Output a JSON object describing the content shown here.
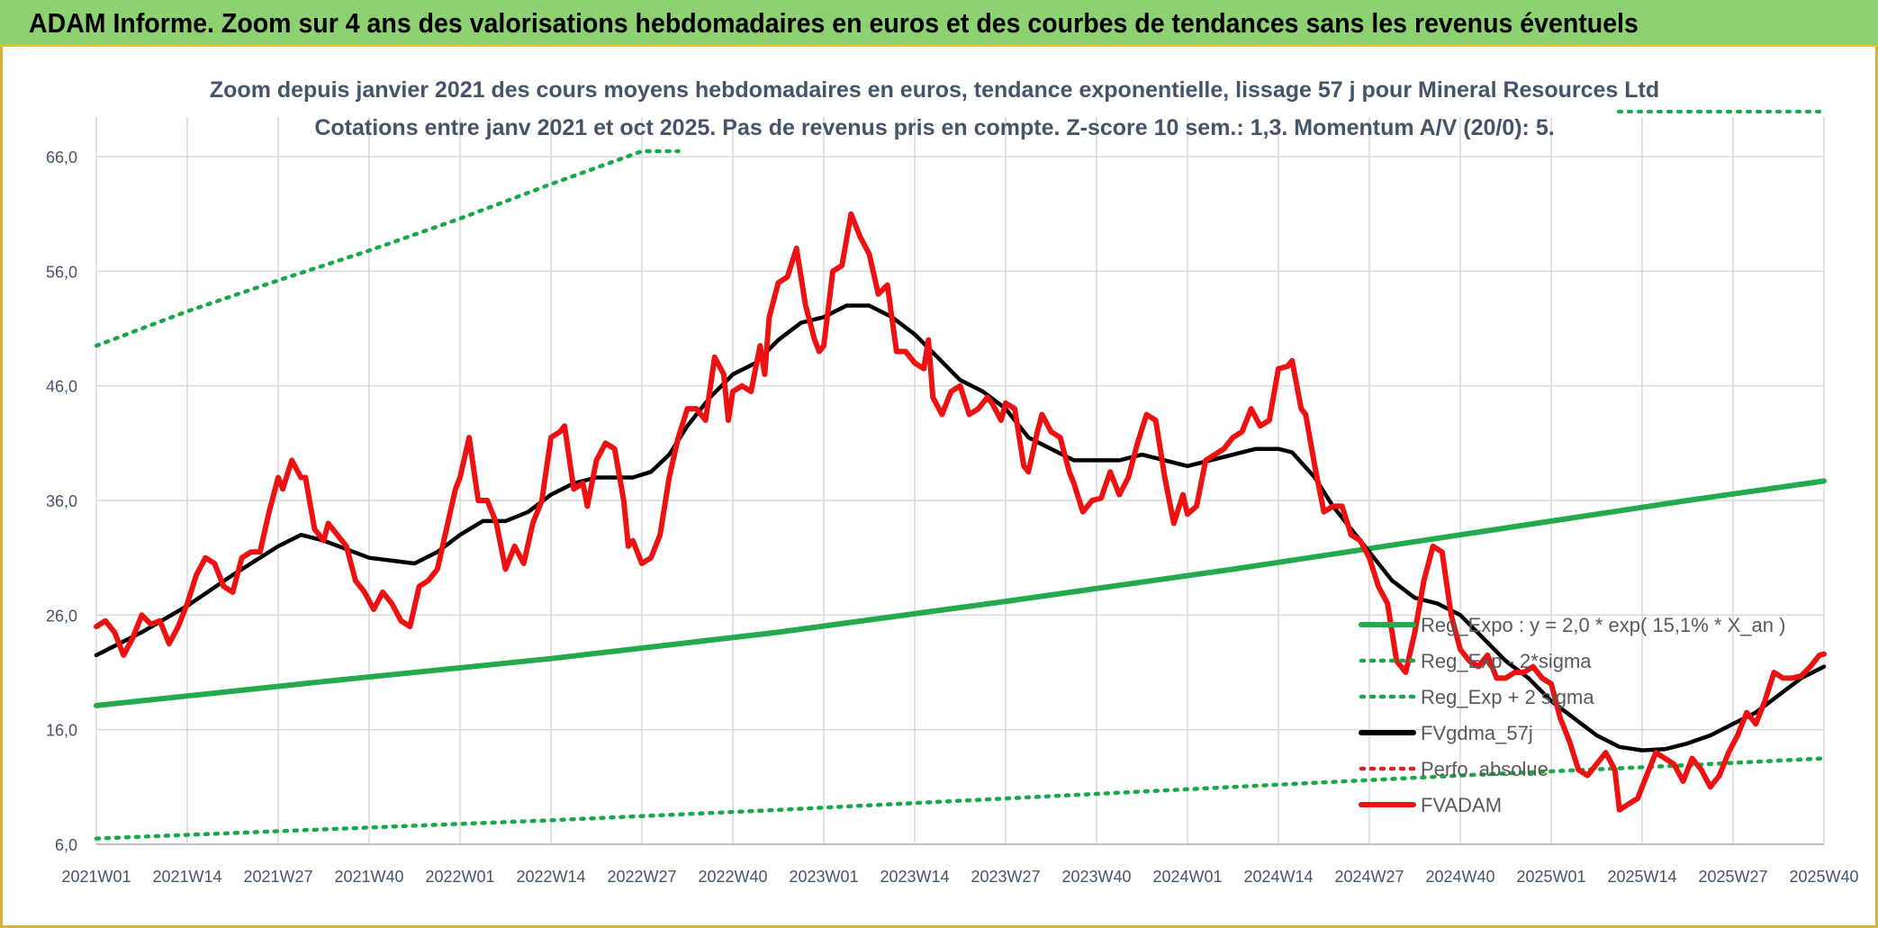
{
  "header": {
    "title": "ADAM Informe. Zoom sur 4 ans des valorisations hebdomadaires en euros et des courbes de tendances sans les revenus éventuels"
  },
  "colors": {
    "red": "#ee1111",
    "black": "#000000",
    "green": "#22aa4c",
    "green_dot": "#17a84a",
    "red_dot": "#e02020",
    "grid": "#d9d9d9"
  },
  "chart_data": {
    "type": "line",
    "title": "Zoom depuis janvier 2021 des cours moyens hebdomadaires en euros, tendance exponentielle, lissage 57 j pour Mineral Resources Ltd",
    "subtitle": "Cotations entre janv 2021 et oct 2025. Pas de revenus pris en compte. Z-score 10 sem.: 1,3. Momentum A/V (20/0): 5.",
    "y_ticks": [
      "6,0",
      "16,0",
      "26,0",
      "36,0",
      "46,0",
      "56,0",
      "66,0"
    ],
    "ylim": [
      6,
      68
    ],
    "x_tick_labels": [
      "2021W01",
      "2021W14",
      "2021W27",
      "2021W40",
      "2022W01",
      "2022W14",
      "2022W27",
      "2022W40",
      "2023W01",
      "2023W14",
      "2023W27",
      "2023W40",
      "2024W01",
      "2024W14",
      "2024W27",
      "2024W40",
      "2025W01",
      "2025W14",
      "2025W27",
      "2025W40"
    ],
    "x_range_weeks": [
      0,
      248
    ],
    "legend": [
      {
        "label": "Reg_Expo : y = 2,0 * exp( 15,1% *  X_an )",
        "style": "solid",
        "color": "#22aa4c"
      },
      {
        "label": "Reg_Exp - 2*sigma",
        "style": "dotted",
        "color": "#17a84a"
      },
      {
        "label": "Reg_Exp + 2 sigma",
        "style": "dotted",
        "color": "#17a84a"
      },
      {
        "label": "FVgdma_57j",
        "style": "solid",
        "color": "#000000"
      },
      {
        "label": "Perfo. absolue",
        "style": "dotted",
        "color": "#e02020"
      },
      {
        "label": "FVADAM",
        "style": "solid",
        "color": "#ee1111"
      }
    ],
    "series": [
      {
        "name": "FVADAM",
        "points": [
          [
            0,
            25
          ],
          [
            2,
            25.5
          ],
          [
            4,
            24.5
          ],
          [
            6,
            22.5
          ],
          [
            8,
            24
          ],
          [
            10,
            26
          ],
          [
            12,
            25.2
          ],
          [
            14,
            25.5
          ],
          [
            16,
            23.5
          ],
          [
            18,
            25
          ],
          [
            20,
            27
          ],
          [
            22,
            29.5
          ],
          [
            24,
            31
          ],
          [
            26,
            30.5
          ],
          [
            28,
            28.5
          ],
          [
            30,
            28
          ],
          [
            32,
            31
          ],
          [
            34,
            31.5
          ],
          [
            36,
            31.5
          ],
          [
            38,
            35
          ],
          [
            40,
            38
          ],
          [
            41,
            37
          ],
          [
            43,
            39.5
          ],
          [
            45,
            38
          ],
          [
            46,
            38
          ],
          [
            48,
            33.5
          ],
          [
            50,
            32.5
          ],
          [
            51,
            34
          ],
          [
            53,
            33
          ],
          [
            55,
            32
          ],
          [
            57,
            29
          ],
          [
            59,
            28
          ],
          [
            61,
            26.5
          ],
          [
            63,
            28
          ],
          [
            65,
            27
          ],
          [
            67,
            25.5
          ],
          [
            69,
            25
          ],
          [
            71,
            28.5
          ],
          [
            73,
            29
          ],
          [
            75,
            30
          ],
          [
            77,
            33.5
          ],
          [
            79,
            37
          ],
          [
            80,
            38
          ],
          [
            82,
            41.5
          ],
          [
            84,
            36
          ],
          [
            86,
            36
          ],
          [
            88,
            34
          ],
          [
            90,
            30
          ],
          [
            92,
            32
          ],
          [
            94,
            30.5
          ],
          [
            96,
            34
          ],
          [
            98,
            36
          ],
          [
            100,
            41.5
          ],
          [
            102,
            42
          ],
          [
            103,
            42.5
          ],
          [
            105,
            37
          ],
          [
            107,
            37.5
          ],
          [
            108,
            35.5
          ],
          [
            110,
            39.5
          ],
          [
            112,
            41
          ],
          [
            114,
            40.5
          ],
          [
            116,
            36
          ],
          [
            117,
            32
          ],
          [
            118,
            32.5
          ],
          [
            120,
            30.5
          ],
          [
            122,
            31
          ],
          [
            124,
            33
          ],
          [
            126,
            38
          ],
          [
            128,
            41.5
          ],
          [
            130,
            44
          ],
          [
            132,
            44
          ],
          [
            134,
            43
          ],
          [
            136,
            48.5
          ],
          [
            138,
            47
          ],
          [
            139,
            43
          ],
          [
            140,
            45.5
          ],
          [
            142,
            46
          ],
          [
            144,
            45.5
          ],
          [
            146,
            49.5
          ],
          [
            147,
            47
          ],
          [
            148,
            52
          ],
          [
            150,
            55
          ],
          [
            152,
            55.5
          ],
          [
            154,
            58
          ],
          [
            156,
            53
          ],
          [
            158,
            50
          ],
          [
            159,
            49
          ],
          [
            160,
            49.5
          ],
          [
            162,
            56
          ],
          [
            164,
            56.5
          ],
          [
            166,
            61
          ],
          [
            168,
            59
          ],
          [
            170,
            57.5
          ],
          [
            172,
            54
          ],
          [
            174,
            54.8
          ],
          [
            176,
            49
          ],
          [
            178,
            49
          ],
          [
            180,
            48
          ],
          [
            182,
            47.5
          ],
          [
            183,
            50
          ],
          [
            184,
            45
          ],
          [
            186,
            43.5
          ],
          [
            188,
            45.5
          ],
          [
            190,
            46
          ],
          [
            192,
            43.5
          ],
          [
            194,
            44
          ],
          [
            196,
            45
          ],
          [
            197,
            44.5
          ],
          [
            199,
            43
          ],
          [
            200,
            44.5
          ],
          [
            202,
            44
          ],
          [
            204,
            39
          ],
          [
            205,
            38.5
          ],
          [
            207,
            42
          ],
          [
            208,
            43.5
          ],
          [
            210,
            42
          ],
          [
            212,
            41.5
          ],
          [
            214,
            38.5
          ],
          [
            215,
            37.5
          ],
          [
            217,
            35
          ],
          [
            219,
            36
          ],
          [
            221,
            36.2
          ],
          [
            223,
            38.5
          ],
          [
            225,
            36.5
          ],
          [
            227,
            38
          ],
          [
            229,
            41
          ],
          [
            231,
            43.5
          ],
          [
            233,
            43
          ],
          [
            235,
            38
          ],
          [
            237,
            34
          ],
          [
            239,
            36.5
          ],
          [
            240,
            34.8
          ],
          [
            242,
            35.5
          ],
          [
            244,
            39.5
          ],
          [
            246,
            40
          ],
          [
            248,
            40.5
          ],
          [
            250,
            41.5
          ],
          [
            252,
            42
          ],
          [
            254,
            44
          ],
          [
            256,
            42.5
          ],
          [
            258,
            43
          ],
          [
            260,
            47.5
          ],
          [
            262,
            47.7
          ],
          [
            263,
            48.2
          ],
          [
            265,
            44
          ],
          [
            266,
            43.5
          ],
          [
            268,
            39
          ],
          [
            270,
            35
          ],
          [
            272,
            35.5
          ],
          [
            274,
            35.5
          ],
          [
            276,
            33
          ],
          [
            278,
            32.5
          ],
          [
            280,
            31
          ],
          [
            282,
            28.5
          ],
          [
            284,
            27
          ],
          [
            286,
            22
          ],
          [
            288,
            21
          ],
          [
            290,
            24.5
          ],
          [
            292,
            29
          ],
          [
            294,
            32
          ],
          [
            296,
            31.5
          ],
          [
            298,
            26
          ],
          [
            300,
            23
          ],
          [
            302,
            22
          ],
          [
            304,
            21.5
          ],
          [
            306,
            22.5
          ],
          [
            308,
            20.5
          ],
          [
            310,
            20.5
          ],
          [
            312,
            21
          ],
          [
            314,
            21
          ],
          [
            316,
            21.5
          ],
          [
            318,
            20.5
          ],
          [
            320,
            20
          ],
          [
            322,
            17
          ],
          [
            324,
            15
          ],
          [
            326,
            12.5
          ],
          [
            328,
            12
          ],
          [
            330,
            13
          ],
          [
            332,
            14
          ],
          [
            334,
            12.5
          ],
          [
            335,
            9
          ],
          [
            337,
            9.5
          ],
          [
            339,
            10
          ],
          [
            341,
            12
          ],
          [
            343,
            14
          ],
          [
            345,
            13.5
          ],
          [
            347,
            13
          ],
          [
            349,
            11.5
          ],
          [
            351,
            13.5
          ],
          [
            353,
            12.5
          ],
          [
            355,
            11
          ],
          [
            357,
            12
          ],
          [
            359,
            14
          ],
          [
            361,
            15.5
          ],
          [
            363,
            17.5
          ],
          [
            365,
            16.5
          ],
          [
            367,
            18.5
          ],
          [
            369,
            21
          ],
          [
            371,
            20.5
          ],
          [
            373,
            20.5
          ],
          [
            375,
            20.7
          ],
          [
            377,
            21.5
          ],
          [
            379,
            22.5
          ],
          [
            380,
            22.6
          ]
        ],
        "color": "#ee1111"
      },
      {
        "name": "FVgdma_57j",
        "points": [
          [
            0,
            22.5
          ],
          [
            10,
            24.5
          ],
          [
            20,
            26.8
          ],
          [
            30,
            29.5
          ],
          [
            40,
            32
          ],
          [
            45,
            33
          ],
          [
            50,
            32.5
          ],
          [
            60,
            31
          ],
          [
            70,
            30.5
          ],
          [
            75,
            31.5
          ],
          [
            80,
            33
          ],
          [
            85,
            34.2
          ],
          [
            90,
            34.2
          ],
          [
            95,
            35
          ],
          [
            100,
            36.5
          ],
          [
            105,
            37.5
          ],
          [
            110,
            38
          ],
          [
            115,
            38
          ],
          [
            118,
            38
          ],
          [
            122,
            38.5
          ],
          [
            126,
            40
          ],
          [
            130,
            42.5
          ],
          [
            135,
            45
          ],
          [
            140,
            47
          ],
          [
            145,
            48
          ],
          [
            150,
            50
          ],
          [
            155,
            51.5
          ],
          [
            160,
            52
          ],
          [
            165,
            53
          ],
          [
            170,
            53
          ],
          [
            175,
            52
          ],
          [
            180,
            50.5
          ],
          [
            185,
            48.5
          ],
          [
            190,
            46.5
          ],
          [
            195,
            45.5
          ],
          [
            200,
            44
          ],
          [
            205,
            41.5
          ],
          [
            210,
            40.5
          ],
          [
            215,
            39.5
          ],
          [
            220,
            39.5
          ],
          [
            225,
            39.5
          ],
          [
            230,
            40
          ],
          [
            235,
            39.5
          ],
          [
            240,
            39
          ],
          [
            245,
            39.5
          ],
          [
            250,
            40
          ],
          [
            255,
            40.5
          ],
          [
            260,
            40.5
          ],
          [
            263,
            40.2
          ],
          [
            268,
            38
          ],
          [
            272,
            35.5
          ],
          [
            276,
            33.5
          ],
          [
            280,
            31.5
          ],
          [
            285,
            29
          ],
          [
            290,
            27.5
          ],
          [
            295,
            27
          ],
          [
            300,
            26
          ],
          [
            305,
            24
          ],
          [
            310,
            22
          ],
          [
            315,
            20.5
          ],
          [
            320,
            18.5
          ],
          [
            325,
            17
          ],
          [
            330,
            15.5
          ],
          [
            335,
            14.5
          ],
          [
            340,
            14.2
          ],
          [
            345,
            14.3
          ],
          [
            350,
            14.8
          ],
          [
            355,
            15.5
          ],
          [
            360,
            16.5
          ],
          [
            365,
            17.5
          ],
          [
            370,
            19
          ],
          [
            375,
            20.5
          ],
          [
            380,
            21.5
          ]
        ],
        "color": "#000000"
      },
      {
        "name": "Reg_Expo",
        "points": [
          [
            0,
            18.1
          ],
          [
            50,
            20.2
          ],
          [
            100,
            22.2
          ],
          [
            150,
            24.5
          ],
          [
            200,
            27.2
          ],
          [
            250,
            30
          ],
          [
            300,
            33
          ],
          [
            350,
            36
          ],
          [
            380,
            37.7
          ]
        ],
        "color": "#22aa4c"
      },
      {
        "name": "Reg_Exp - 2*sigma",
        "points": [
          [
            0,
            6.5
          ],
          [
            50,
            7.3
          ],
          [
            100,
            8.1
          ],
          [
            150,
            9
          ],
          [
            200,
            10
          ],
          [
            250,
            11
          ],
          [
            300,
            12
          ],
          [
            350,
            12.9
          ],
          [
            380,
            13.5
          ]
        ],
        "color": "#17a84a"
      },
      {
        "name": "Reg_Exp + 2 sigma",
        "points": [
          [
            0,
            49.5
          ],
          [
            20,
            52.5
          ],
          [
            40,
            55.2
          ],
          [
            60,
            57.8
          ],
          [
            80,
            60.6
          ],
          [
            100,
            63.6
          ],
          [
            120,
            66.8
          ],
          [
            128,
            68
          ]
        ],
        "color": "#17a84a"
      }
    ]
  }
}
